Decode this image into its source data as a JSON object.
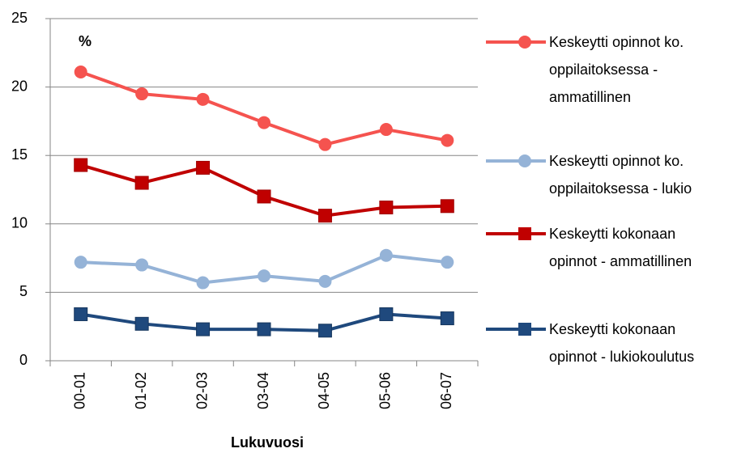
{
  "chart_data": {
    "type": "line",
    "annotation": "%",
    "x_label": "Lukuvuosi",
    "categories": [
      "00-01",
      "01-02",
      "02-03",
      "03-04",
      "04-05",
      "05-06",
      "06-07"
    ],
    "series": [
      {
        "name": "Keskeytti opinnot ko. oppilaitoksessa - ammatillinen",
        "color": "#f5534f",
        "marker": "circle",
        "values": [
          21.1,
          19.5,
          19.1,
          17.4,
          15.8,
          16.9,
          16.1
        ]
      },
      {
        "name": "Keskeytti opinnot ko. oppilaitoksessa - lukio",
        "color": "#95b3d7",
        "marker": "circle",
        "values": [
          7.2,
          7.0,
          5.7,
          6.2,
          5.8,
          7.7,
          7.2
        ]
      },
      {
        "name": "Keskeytti kokonaan opinnot - ammatillinen",
        "color": "#c00000",
        "marker": "square",
        "values": [
          14.3,
          13.0,
          14.1,
          12.0,
          10.6,
          11.2,
          11.3
        ]
      },
      {
        "name": "Keskeytti kokonaan opinnot - lukiokoulutus",
        "color": "#1f497d",
        "marker": "square",
        "values": [
          3.4,
          2.7,
          2.3,
          2.3,
          2.2,
          3.4,
          3.1
        ]
      }
    ],
    "ylim": [
      0,
      25
    ],
    "yticks": [
      0,
      5,
      10,
      15,
      20,
      25
    ],
    "grid": true,
    "legend": "right"
  }
}
